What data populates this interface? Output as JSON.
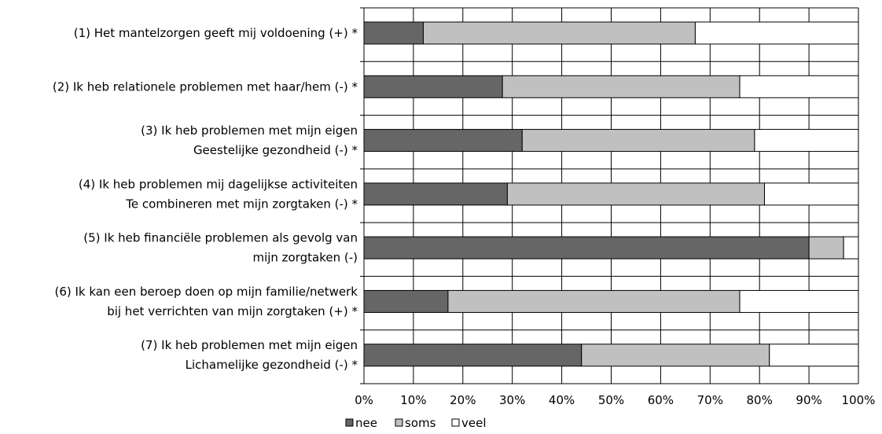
{
  "chart_data": {
    "type": "bar",
    "orientation": "horizontal",
    "stacked": "percent",
    "categories": [
      [
        "(1) Het mantelzorgen geeft mij voldoening (+) *"
      ],
      [
        "(2) Ik heb relationele problemen met haar/hem (-) *"
      ],
      [
        "(3) Ik heb problemen met mijn eigen",
        "Geestelijke gezondheid (-) *"
      ],
      [
        "(4) Ik heb problemen mij dagelijkse activiteiten",
        "Te combineren met mijn zorgtaken (-) *"
      ],
      [
        "(5) Ik heb financiële problemen als gevolg van",
        "mijn zorgtaken (-)"
      ],
      [
        "(6) Ik kan een beroep doen op mijn familie/netwerk",
        "bij het verrichten van mijn zorgtaken (+) *"
      ],
      [
        "(7) Ik heb problemen met mijn eigen",
        "Lichamelijke gezondheid (-) *"
      ]
    ],
    "series": [
      {
        "name": "nee",
        "color": "#666666",
        "values": [
          12,
          28,
          32,
          29,
          90,
          17,
          44
        ]
      },
      {
        "name": "soms",
        "color": "#c0c0c0",
        "values": [
          55,
          48,
          47,
          52,
          7,
          59,
          38
        ]
      },
      {
        "name": "veel",
        "color": "#ffffff",
        "values": [
          33,
          24,
          21,
          19,
          3,
          24,
          18
        ]
      }
    ],
    "xlim": [
      0,
      100
    ],
    "x_ticks": [
      "0%",
      "10%",
      "20%",
      "30%",
      "40%",
      "50%",
      "60%",
      "70%",
      "80%",
      "90%",
      "100%"
    ],
    "grid": true,
    "legend": "bottom"
  }
}
